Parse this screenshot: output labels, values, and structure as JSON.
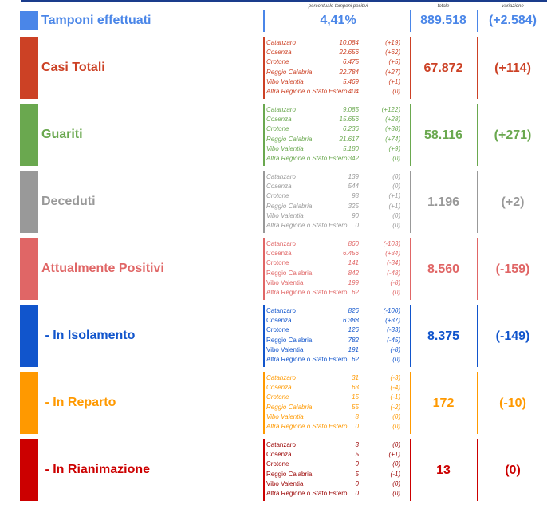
{
  "headers": {
    "percent": "percentuale tamponi positivi",
    "total": "totale",
    "change": "variazione"
  },
  "tamponi": {
    "label": "Tamponi effettuati",
    "percent": "4,41%",
    "total": "889.518",
    "change": "(+2.584)",
    "color": "#4a86e8"
  },
  "categories": [
    {
      "label": "Casi Totali",
      "total": "67.872",
      "change": "(+114)",
      "color": "#cc4125",
      "rows": [
        {
          "name": "Catanzaro",
          "value": "10.084",
          "change": "(+19)"
        },
        {
          "name": "Cosenza",
          "value": "22.656",
          "change": "(+62)"
        },
        {
          "name": "Crotone",
          "value": "6.475",
          "change": "(+5)"
        },
        {
          "name": "Reggio Calabria",
          "value": "22.784",
          "change": "(+27)"
        },
        {
          "name": "Vibo Valentia",
          "value": "5.469",
          "change": "(+1)"
        },
        {
          "name": "Altra Regione o Stato Estero",
          "value": "404",
          "change": "(0)"
        }
      ]
    },
    {
      "label": "Guariti",
      "total": "58.116",
      "change": "(+271)",
      "color": "#6aa84f",
      "rows": [
        {
          "name": "Catanzaro",
          "value": "9.085",
          "change": "(+122)"
        },
        {
          "name": "Cosenza",
          "value": "15.656",
          "change": "(+28)"
        },
        {
          "name": "Crotone",
          "value": "6.236",
          "change": "(+38)"
        },
        {
          "name": "Reggio Calabria",
          "value": "21.617",
          "change": "(+74)"
        },
        {
          "name": "Vibo Valentia",
          "value": "5.180",
          "change": "(+9)"
        },
        {
          "name": "Altra Regione o Stato Estero",
          "value": "342",
          "change": "(0)"
        }
      ]
    },
    {
      "label": "Deceduti",
      "total": "1.196",
      "change": "(+2)",
      "color": "#999999",
      "rows": [
        {
          "name": "Catanzaro",
          "value": "139",
          "change": "(0)"
        },
        {
          "name": "Cosenza",
          "value": "544",
          "change": "(0)"
        },
        {
          "name": "Crotone",
          "value": "98",
          "change": "(+1)"
        },
        {
          "name": "Reggio Calabria",
          "value": "325",
          "change": "(+1)"
        },
        {
          "name": "Vibo Valentia",
          "value": "90",
          "change": "(0)"
        },
        {
          "name": "Altra Regione o Stato Estero",
          "value": "0",
          "change": "(0)"
        }
      ]
    },
    {
      "label": "Attualmente Positivi",
      "total": "8.560",
      "change": "(-159)",
      "color": "#e06666",
      "rows": [
        {
          "name": "Catanzaro",
          "value": "860",
          "change": "(-103)"
        },
        {
          "name": "Cosenza",
          "value": "6.456",
          "change": "(+34)"
        },
        {
          "name": "Crotone",
          "value": "141",
          "change": "(-34)"
        },
        {
          "name": "Reggio Calabria",
          "value": "842",
          "change": "(-48)"
        },
        {
          "name": "Vibo Valentia",
          "value": "199",
          "change": "(-8)"
        },
        {
          "name": "Altra Regione o Stato Estero",
          "value": "62",
          "change": "(0)"
        }
      ]
    },
    {
      "label": " - In Isolamento",
      "total": "8.375",
      "change": "(-149)",
      "color": "#1155cc",
      "rows": [
        {
          "name": "Catanzaro",
          "value": "826",
          "change": "(-100)"
        },
        {
          "name": "Cosenza",
          "value": "6.388",
          "change": "(+37)"
        },
        {
          "name": "Crotone",
          "value": "126",
          "change": "(-33)"
        },
        {
          "name": "Reggio Calabria",
          "value": "782",
          "change": "(-45)"
        },
        {
          "name": "Vibo Valentia",
          "value": "191",
          "change": "(-8)"
        },
        {
          "name": "Altra Regione o Stato Estero",
          "value": "62",
          "change": "(0)"
        }
      ]
    },
    {
      "label": " - In Reparto",
      "total": "172",
      "change": "(-10)",
      "color": "#ff9900",
      "rows": [
        {
          "name": "Catanzaro",
          "value": "31",
          "change": "(-3)"
        },
        {
          "name": "Cosenza",
          "value": "63",
          "change": "(-4)"
        },
        {
          "name": "Crotone",
          "value": "15",
          "change": "(-1)"
        },
        {
          "name": "Reggio Calabria",
          "value": "55",
          "change": "(-2)"
        },
        {
          "name": "Vibo Valentia",
          "value": "8",
          "change": "(0)"
        },
        {
          "name": "Altra Regione o Stato Estero",
          "value": "0",
          "change": "(0)"
        }
      ]
    },
    {
      "label": " - In Rianimazione",
      "total": "13",
      "change": "(0)",
      "color": "#cc0000",
      "rows": [
        {
          "name": "Catanzaro",
          "value": "3",
          "change": "(0)"
        },
        {
          "name": "Cosenza",
          "value": "5",
          "change": "(+1)"
        },
        {
          "name": "Crotone",
          "value": "0",
          "change": "(0)"
        },
        {
          "name": "Reggio Calabria",
          "value": "5",
          "change": "(-1)"
        },
        {
          "name": "Vibo Valentia",
          "value": "0",
          "change": "(0)"
        },
        {
          "name": "Altra Regione o Stato Estero",
          "value": "0",
          "change": "(0)"
        }
      ]
    }
  ]
}
